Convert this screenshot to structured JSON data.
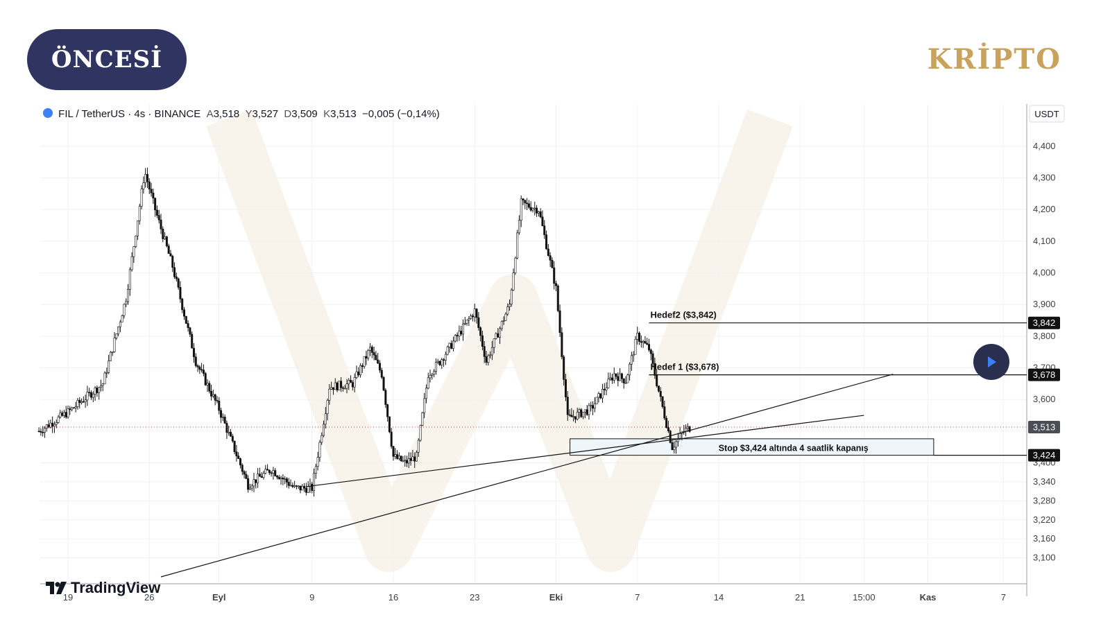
{
  "badge": {
    "label": "ÖNCESİ"
  },
  "brand": {
    "label": "KRİPTO"
  },
  "legend": {
    "symbol": "FIL / TetherUS · 4s · BINANCE",
    "open_label": "A",
    "open": "3,518",
    "high_label": "Y",
    "high": "3,527",
    "low_label": "D",
    "low": "3,509",
    "close_label": "K",
    "close": "3,513",
    "change": "−0,005 (−0,14%)"
  },
  "logo": {
    "label": "TradingView"
  },
  "colors": {
    "badge_bg": "#2f3461",
    "brand": "#c9a25c",
    "candle": "#111111",
    "price_line": "#d32f2f",
    "play_bg": "#2a2e4f",
    "play_arrow": "#3b82f6"
  },
  "chart_data": {
    "type": "candlestick",
    "currency": "USDT",
    "ylim": [
      3040,
      4450
    ],
    "yticks": [
      {
        "v": 4400,
        "label": "4,400"
      },
      {
        "v": 4300,
        "label": "4,300"
      },
      {
        "v": 4200,
        "label": "4,200"
      },
      {
        "v": 4100,
        "label": "4,100"
      },
      {
        "v": 4000,
        "label": "4,000"
      },
      {
        "v": 3900,
        "label": "3,900"
      },
      {
        "v": 3800,
        "label": "3,800"
      },
      {
        "v": 3700,
        "label": "3,700"
      },
      {
        "v": 3600,
        "label": "3,600"
      },
      {
        "v": 3400,
        "label": "3,400"
      },
      {
        "v": 3340,
        "label": "3,340"
      },
      {
        "v": 3280,
        "label": "3,280"
      },
      {
        "v": 3220,
        "label": "3,220"
      },
      {
        "v": 3160,
        "label": "3,160"
      },
      {
        "v": 3100,
        "label": "3,100"
      }
    ],
    "xticks": [
      {
        "d": 0,
        "label": "19"
      },
      {
        "d": 7,
        "label": "26"
      },
      {
        "d": 13,
        "label": "Eyl"
      },
      {
        "d": 21,
        "label": "9"
      },
      {
        "d": 28,
        "label": "16"
      },
      {
        "d": 35,
        "label": "23"
      },
      {
        "d": 42,
        "label": "Eki"
      },
      {
        "d": 49,
        "label": "7"
      },
      {
        "d": 56,
        "label": "14"
      },
      {
        "d": 63,
        "label": "21"
      },
      {
        "d": 68.5,
        "label": "15:00"
      },
      {
        "d": 74,
        "label": "Kas"
      },
      {
        "d": 80.5,
        "label": "7"
      }
    ],
    "price_path": [
      [
        -2.5,
        3500
      ],
      [
        0,
        3560
      ],
      [
        3,
        3650
      ],
      [
        5,
        3920
      ],
      [
        6.6,
        4320
      ],
      [
        7.5,
        4200
      ],
      [
        9,
        4020
      ],
      [
        11,
        3720
      ],
      [
        13,
        3570
      ],
      [
        15.5,
        3330
      ],
      [
        17.5,
        3380
      ],
      [
        19.5,
        3320
      ],
      [
        21,
        3320
      ],
      [
        22.5,
        3640
      ],
      [
        24.5,
        3650
      ],
      [
        26,
        3760
      ],
      [
        27,
        3680
      ],
      [
        28,
        3420
      ],
      [
        29,
        3400
      ],
      [
        30,
        3420
      ],
      [
        31,
        3680
      ],
      [
        32,
        3720
      ],
      [
        35,
        3880
      ],
      [
        36,
        3720
      ],
      [
        38,
        3900
      ],
      [
        39,
        4220
      ],
      [
        40.5,
        4200
      ],
      [
        42,
        3950
      ],
      [
        43,
        3540
      ],
      [
        45,
        3570
      ],
      [
        47,
        3680
      ],
      [
        48,
        3660
      ],
      [
        49,
        3800
      ],
      [
        50,
        3760
      ],
      [
        51,
        3600
      ],
      [
        52,
        3450
      ],
      [
        53,
        3500
      ],
      [
        53.6,
        3513
      ]
    ],
    "last_price": {
      "v": 3513,
      "label": "3,513"
    },
    "levels": [
      {
        "name": "hedef2",
        "v": 3842,
        "label": "3,842",
        "text": "Hedef2 ($3,842)",
        "from_d": 50
      },
      {
        "name": "hedef1",
        "v": 3678,
        "label": "3,678",
        "text": "Hedef 1 ($3,678)",
        "from_d": 50
      },
      {
        "name": "stop",
        "v": 3424,
        "label": "3,424",
        "text": "",
        "from_d": 74.5
      }
    ],
    "stop_zone": {
      "d1": 43.2,
      "d2": 74.5,
      "v_top": 3476,
      "v_bottom": 3424,
      "text": "Stop $3,424 altında 4 saatlik kapanış"
    },
    "trendlines": [
      {
        "name": "lower-trendline",
        "p1": [
          8,
          3040
        ],
        "p2": [
          71,
          3680
        ]
      },
      {
        "name": "upper-trendline",
        "p1": [
          20.5,
          3325
        ],
        "p2": [
          68.5,
          3550
        ]
      }
    ]
  }
}
